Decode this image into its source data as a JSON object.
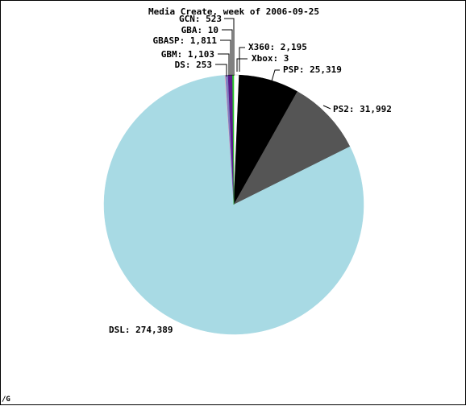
{
  "chart_data": {
    "type": "pie",
    "title": "Media Create, week of 2006-09-25",
    "legend": "none",
    "slices": [
      {
        "label": "X360",
        "value": 2195,
        "color": "#ffffff"
      },
      {
        "label": "Xbox",
        "value": 3,
        "color": "#ffffff"
      },
      {
        "label": "PSP",
        "value": 25319,
        "color": "#000000"
      },
      {
        "label": "PS2",
        "value": 31992,
        "color": "#555555"
      },
      {
        "label": "DSL",
        "value": 274389,
        "color": "#a8dae4"
      },
      {
        "label": "DS",
        "value": 253,
        "color": "#f0b8c8"
      },
      {
        "label": "GBM",
        "value": 1103,
        "color": "#8080c0"
      },
      {
        "label": "GBASP",
        "value": 1811,
        "color": "#5a1a8c"
      },
      {
        "label": "GBA",
        "value": 10,
        "color": "#6a2a9c"
      },
      {
        "label": "GCN",
        "value": 523,
        "color": "#28c828"
      }
    ],
    "label_text": [
      "X360: 2,195",
      "Xbox: 3",
      "PSP: 25,319",
      "PS2: 31,992",
      "DSL: 274,389",
      "DS: 253",
      "GBM: 1,103",
      "GBASP: 1,811",
      "GBA: 10",
      "GCN: 523"
    ]
  },
  "corner_mark": "/G"
}
